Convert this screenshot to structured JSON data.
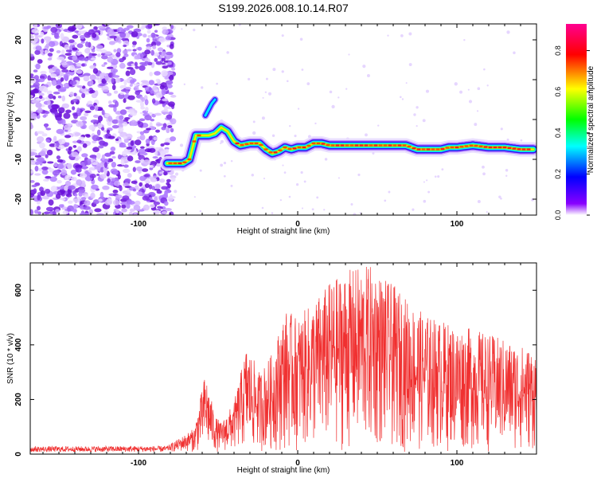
{
  "title": "S199.2026.008.10.14.R07",
  "chart_data": [
    {
      "type": "heatmap",
      "xlabel": "Height of straight line (km)",
      "ylabel": "Frequency (Hz)",
      "xlim": [
        -168,
        150
      ],
      "ylim": [
        -24,
        24
      ],
      "x_ticks": [
        -100,
        0,
        100
      ],
      "y_ticks": [
        -20,
        -10,
        0,
        10,
        20
      ],
      "colorbar": {
        "label": "Normalized spectral amplitude",
        "range": [
          0,
          0.93
        ],
        "ticks": [
          "0.0",
          "0.2",
          "0.4",
          "0.6",
          "0.8"
        ],
        "tick_values": [
          0,
          0.2,
          0.4,
          0.6,
          0.8
        ],
        "colormap": [
          "#ffffff",
          "#8800ff",
          "#0000ff",
          "#00ffff",
          "#00ff00",
          "#ffff00",
          "#ff0000",
          "#ff0090"
        ]
      },
      "noise_region_x": [
        -168,
        -82
      ],
      "ridge": {
        "x": [
          -82,
          -72,
          -68,
          -64,
          -60,
          -56,
          -52,
          -48,
          -44,
          -40,
          -36,
          -30,
          -24,
          -20,
          -16,
          -12,
          -8,
          -4,
          0,
          5,
          10,
          15,
          20,
          30,
          40,
          50,
          60,
          68,
          75,
          80,
          85,
          90,
          95,
          100,
          110,
          120,
          130,
          140,
          148
        ],
        "y": [
          -11,
          -11,
          -10,
          -4,
          -4,
          -4,
          -3.5,
          -2,
          -3,
          -5.5,
          -6.5,
          -6,
          -6,
          -7.5,
          -8.5,
          -8,
          -7,
          -7.5,
          -7,
          -7,
          -6,
          -6,
          -6.5,
          -6.5,
          -6.5,
          -6.5,
          -6.5,
          -6.5,
          -7.5,
          -7.5,
          -7.5,
          -7.5,
          -7,
          -7,
          -6.5,
          -7,
          -7,
          -7.5,
          -7.5
        ]
      },
      "spur": {
        "x": [
          -58,
          -54,
          -52
        ],
        "y": [
          1,
          4,
          5
        ]
      }
    },
    {
      "type": "line",
      "xlabel": "Height of straight line (km)",
      "ylabel": "SNR (10 * v/v)",
      "xlim": [
        -168,
        150
      ],
      "ylim": [
        0,
        700
      ],
      "x_ticks": [
        -100,
        0,
        100
      ],
      "y_ticks": [
        0,
        200,
        400,
        600
      ],
      "color": "#f03030",
      "envelope": {
        "x": [
          -168,
          -82,
          -75,
          -65,
          -58,
          -52,
          -48,
          -40,
          -32,
          -24,
          -16,
          -8,
          0,
          10,
          20,
          30,
          40,
          48,
          55,
          62,
          70,
          80,
          90,
          100,
          110,
          120,
          130,
          140,
          150
        ],
        "y": [
          28,
          30,
          55,
          95,
          300,
          140,
          115,
          190,
          400,
          300,
          370,
          530,
          500,
          560,
          630,
          670,
          690,
          690,
          640,
          610,
          560,
          510,
          490,
          470,
          460,
          440,
          420,
          400,
          380
        ]
      },
      "floor": 8
    }
  ]
}
